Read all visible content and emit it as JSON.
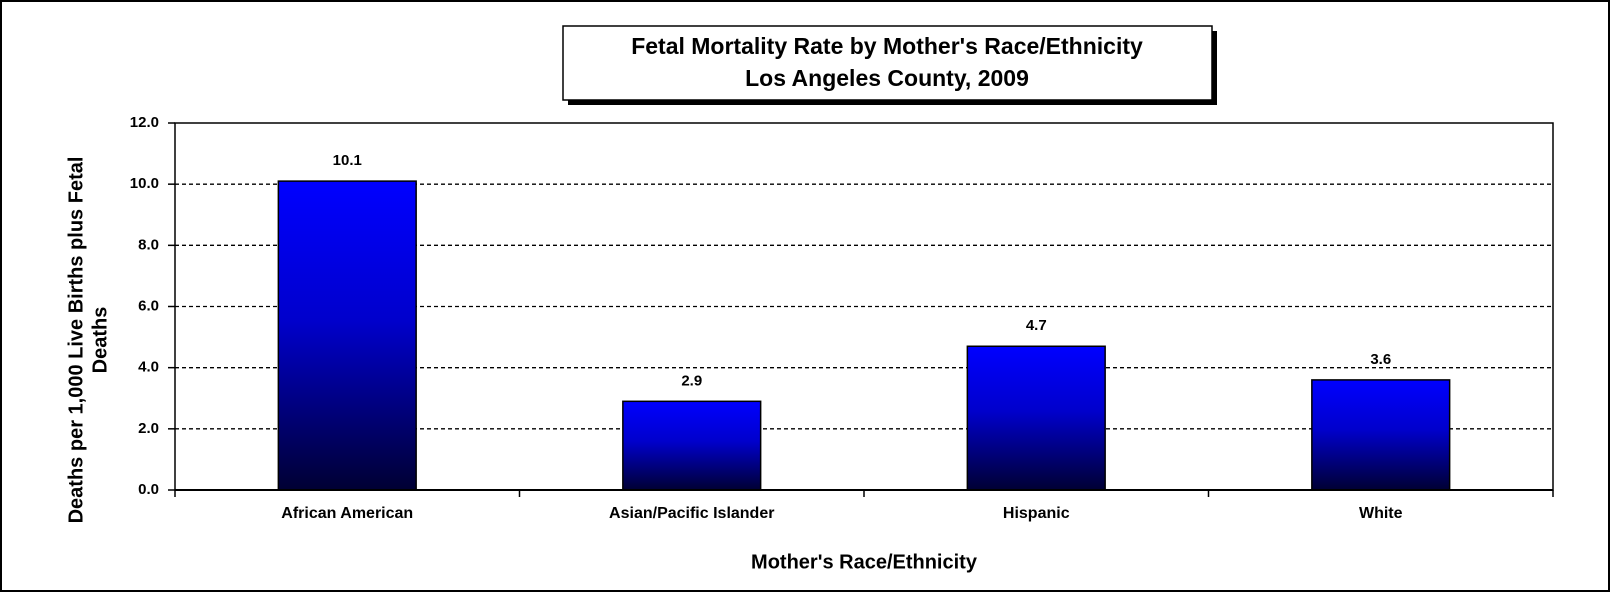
{
  "chart_data": {
    "type": "bar",
    "title": "Fetal Mortality Rate by Mother's Race/Ethnicity",
    "subtitle": "Los Angeles County, 2009",
    "xlabel": "Mother's Race/Ethnicity",
    "ylabel": [
      "Deaths per 1,000 Live Births plus Fetal",
      "Deaths"
    ],
    "categories": [
      "African American",
      "Asian/Pacific Islander",
      "Hispanic",
      "White"
    ],
    "values": [
      10.1,
      2.9,
      4.7,
      3.6
    ],
    "color": "#0000ff",
    "ylim": [
      0,
      12
    ],
    "yticks": [
      {
        "value": 0,
        "label": "0.0"
      },
      {
        "value": 2,
        "label": "2.0"
      },
      {
        "value": 4,
        "label": "4.0"
      },
      {
        "value": 6,
        "label": "6.0"
      },
      {
        "value": 8,
        "label": "8.0"
      },
      {
        "value": 10,
        "label": "10.0"
      },
      {
        "value": 12,
        "label": "12.0"
      }
    ],
    "grid": true
  }
}
